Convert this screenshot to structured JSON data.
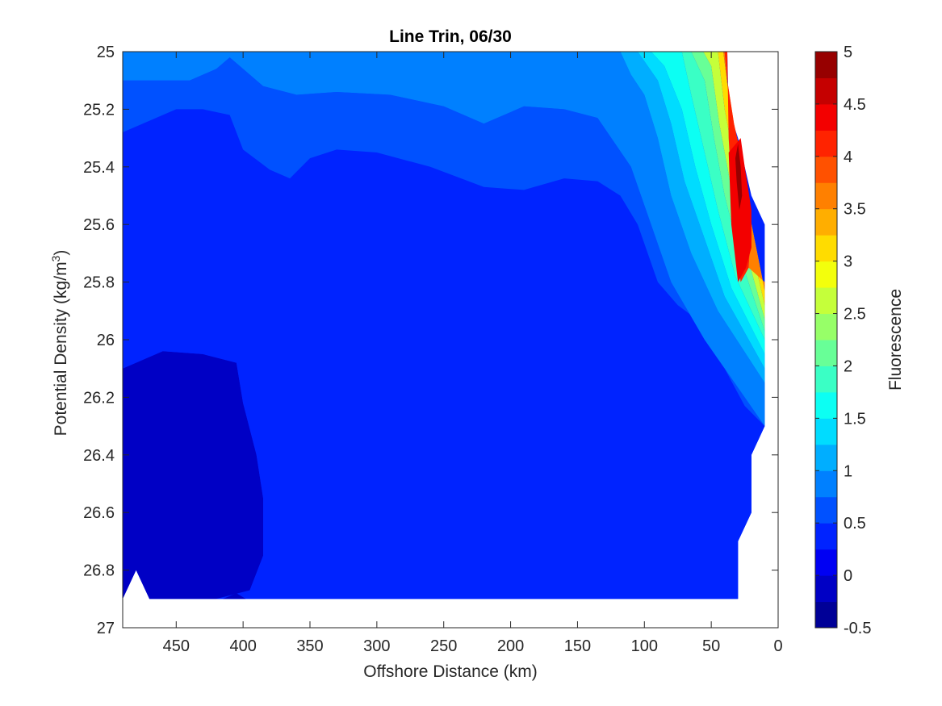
{
  "chart_data": {
    "type": "contourf",
    "title": "Line Trin, 06/30",
    "xlabel": "Offshore Distance (km)",
    "ylabel": "Potential Density (kg/m",
    "ylabel_superscript": "3",
    "ylabel_suffix": ")",
    "colorbar_label": "Fluorescence",
    "colormap": "jet",
    "x_reversed": true,
    "y_reversed": true,
    "xlim": [
      0,
      490
    ],
    "ylim": [
      25,
      27
    ],
    "xticks": [
      450,
      400,
      350,
      300,
      250,
      200,
      150,
      100,
      50,
      0
    ],
    "yticks": [
      25,
      25.2,
      25.4,
      25.6,
      25.8,
      26,
      26.2,
      26.4,
      26.6,
      26.8,
      27
    ],
    "color_levels": [
      -0.5,
      -0.25,
      0,
      0.25,
      0.5,
      0.75,
      1,
      1.25,
      1.5,
      1.75,
      2,
      2.25,
      2.5,
      2.75,
      3,
      3.25,
      3.5,
      3.75,
      4,
      4.25,
      4.5,
      4.75,
      5
    ],
    "colorbar_ticks": [
      -0.5,
      0,
      0.5,
      1,
      1.5,
      2,
      2.5,
      3,
      3.5,
      4,
      4.5,
      5
    ],
    "colorbar_ticklabels": [
      "-0.5",
      "0",
      "0.5",
      "1",
      "1.5",
      "2",
      "2.5",
      "3",
      "3.5",
      "4",
      "4.5",
      "5"
    ],
    "grid": false,
    "data_boundary": [
      [
        490,
        26.9
      ],
      [
        480,
        26.8
      ],
      [
        470,
        26.9
      ],
      [
        30,
        26.9
      ],
      [
        30,
        26.7
      ],
      [
        20,
        26.6
      ],
      [
        20,
        26.4
      ],
      [
        10,
        26.3
      ],
      [
        10,
        25.6
      ],
      [
        20,
        25.5
      ],
      [
        25,
        25.4
      ],
      [
        30,
        25.3
      ],
      [
        37,
        25.2
      ],
      [
        38,
        25.0
      ],
      [
        490,
        25.0
      ]
    ],
    "regions": [
      {
        "level": -0.25,
        "polygon": [
          [
            490,
            26.9
          ],
          [
            480,
            26.8
          ],
          [
            470,
            26.9
          ],
          [
            420,
            26.9
          ],
          [
            395,
            26.87
          ],
          [
            385,
            26.75
          ],
          [
            385,
            26.55
          ],
          [
            390,
            26.4
          ],
          [
            400,
            26.22
          ],
          [
            405,
            26.08
          ],
          [
            430,
            26.05
          ],
          [
            460,
            26.04
          ],
          [
            490,
            26.1
          ]
        ]
      },
      {
        "level": 0.25,
        "polygon": [
          [
            470,
            26.9
          ],
          [
            30,
            26.9
          ],
          [
            30,
            26.7
          ],
          [
            20,
            26.6
          ],
          [
            20,
            26.4
          ],
          [
            10,
            26.3
          ],
          [
            15,
            26.27
          ],
          [
            25,
            26.23
          ],
          [
            40,
            26.1
          ],
          [
            55,
            25.95
          ],
          [
            75,
            25.88
          ],
          [
            90,
            25.8
          ],
          [
            105,
            25.6
          ],
          [
            118,
            25.5
          ],
          [
            135,
            25.45
          ],
          [
            160,
            25.44
          ],
          [
            190,
            25.48
          ],
          [
            220,
            25.47
          ],
          [
            260,
            25.4
          ],
          [
            300,
            25.35
          ],
          [
            330,
            25.34
          ],
          [
            350,
            25.37
          ],
          [
            365,
            25.44
          ],
          [
            380,
            25.41
          ],
          [
            400,
            25.34
          ],
          [
            410,
            25.22
          ],
          [
            430,
            25.2
          ],
          [
            450,
            25.2
          ],
          [
            490,
            25.28
          ],
          [
            490,
            26.1
          ],
          [
            460,
            26.04
          ],
          [
            430,
            26.05
          ],
          [
            405,
            26.08
          ],
          [
            400,
            26.22
          ],
          [
            390,
            26.4
          ],
          [
            385,
            26.55
          ],
          [
            385,
            26.75
          ],
          [
            395,
            26.87
          ],
          [
            420,
            26.9
          ]
        ]
      },
      {
        "level": 0.5,
        "polygon": [
          [
            490,
            25.28
          ],
          [
            450,
            25.2
          ],
          [
            430,
            25.2
          ],
          [
            410,
            25.22
          ],
          [
            400,
            25.34
          ],
          [
            380,
            25.41
          ],
          [
            365,
            25.44
          ],
          [
            350,
            25.37
          ],
          [
            330,
            25.34
          ],
          [
            300,
            25.35
          ],
          [
            260,
            25.4
          ],
          [
            220,
            25.47
          ],
          [
            190,
            25.48
          ],
          [
            160,
            25.44
          ],
          [
            135,
            25.45
          ],
          [
            118,
            25.5
          ],
          [
            105,
            25.6
          ],
          [
            90,
            25.8
          ],
          [
            75,
            25.88
          ],
          [
            55,
            25.95
          ],
          [
            40,
            26.1
          ],
          [
            25,
            26.23
          ],
          [
            10,
            26.3
          ],
          [
            55,
            26.0
          ],
          [
            80,
            25.8
          ],
          [
            95,
            25.6
          ],
          [
            110,
            25.4
          ],
          [
            135,
            25.23
          ],
          [
            160,
            25.2
          ],
          [
            190,
            25.19
          ],
          [
            220,
            25.25
          ],
          [
            250,
            25.19
          ],
          [
            290,
            25.15
          ],
          [
            330,
            25.14
          ],
          [
            360,
            25.15
          ],
          [
            385,
            25.12
          ],
          [
            410,
            25.02
          ],
          [
            420,
            25.06
          ],
          [
            440,
            25.1
          ],
          [
            490,
            25.1
          ]
        ]
      },
      {
        "level": 0.75,
        "polygon": [
          [
            490,
            25.1
          ],
          [
            440,
            25.1
          ],
          [
            420,
            25.06
          ],
          [
            410,
            25.02
          ],
          [
            385,
            25.12
          ],
          [
            360,
            25.15
          ],
          [
            330,
            25.14
          ],
          [
            290,
            25.15
          ],
          [
            250,
            25.19
          ],
          [
            220,
            25.25
          ],
          [
            190,
            25.19
          ],
          [
            160,
            25.2
          ],
          [
            135,
            25.23
          ],
          [
            110,
            25.4
          ],
          [
            95,
            25.6
          ],
          [
            80,
            25.8
          ],
          [
            55,
            26.0
          ],
          [
            10,
            26.3
          ],
          [
            10,
            26.15
          ],
          [
            45,
            25.9
          ],
          [
            65,
            25.7
          ],
          [
            80,
            25.5
          ],
          [
            90,
            25.3
          ],
          [
            100,
            25.15
          ],
          [
            110,
            25.08
          ],
          [
            118,
            25.0
          ],
          [
            490,
            25.0
          ]
        ]
      },
      {
        "level": 1.0,
        "polygon": [
          [
            118,
            25.0
          ],
          [
            110,
            25.08
          ],
          [
            100,
            25.15
          ],
          [
            90,
            25.3
          ],
          [
            80,
            25.5
          ],
          [
            65,
            25.7
          ],
          [
            45,
            25.9
          ],
          [
            10,
            26.15
          ],
          [
            10,
            26.1
          ],
          [
            40,
            25.85
          ],
          [
            55,
            25.65
          ],
          [
            70,
            25.45
          ],
          [
            80,
            25.25
          ],
          [
            90,
            25.1
          ],
          [
            105,
            25.0
          ]
        ]
      },
      {
        "level": 1.25,
        "polygon": [
          [
            105,
            25.0
          ],
          [
            90,
            25.1
          ],
          [
            80,
            25.25
          ],
          [
            70,
            25.45
          ],
          [
            55,
            25.65
          ],
          [
            40,
            25.85
          ],
          [
            10,
            26.1
          ],
          [
            10,
            26.05
          ],
          [
            35,
            25.82
          ],
          [
            50,
            25.6
          ],
          [
            62,
            25.4
          ],
          [
            72,
            25.2
          ],
          [
            85,
            25.05
          ],
          [
            95,
            25.0
          ]
        ]
      },
      {
        "level": 1.5,
        "polygon": [
          [
            95,
            25.0
          ],
          [
            85,
            25.05
          ],
          [
            72,
            25.2
          ],
          [
            62,
            25.4
          ],
          [
            50,
            25.6
          ],
          [
            35,
            25.82
          ],
          [
            10,
            26.05
          ],
          [
            10,
            26.0
          ],
          [
            32,
            25.78
          ],
          [
            45,
            25.55
          ],
          [
            55,
            25.35
          ],
          [
            65,
            25.15
          ],
          [
            72,
            25.0
          ]
        ]
      },
      {
        "level": 1.75,
        "polygon": [
          [
            72,
            25.0
          ],
          [
            65,
            25.15
          ],
          [
            55,
            25.35
          ],
          [
            45,
            25.55
          ],
          [
            32,
            25.78
          ],
          [
            10,
            26.0
          ],
          [
            10,
            25.97
          ],
          [
            28,
            25.72
          ],
          [
            40,
            25.5
          ],
          [
            48,
            25.3
          ],
          [
            55,
            25.1
          ],
          [
            65,
            25.0
          ]
        ]
      },
      {
        "level": 2.0,
        "polygon": [
          [
            65,
            25.0
          ],
          [
            55,
            25.1
          ],
          [
            48,
            25.3
          ],
          [
            40,
            25.5
          ],
          [
            28,
            25.72
          ],
          [
            10,
            25.97
          ],
          [
            10,
            25.93
          ],
          [
            26,
            25.66
          ],
          [
            36,
            25.45
          ],
          [
            44,
            25.25
          ],
          [
            50,
            25.05
          ],
          [
            56,
            25.0
          ]
        ]
      },
      {
        "level": 2.5,
        "polygon": [
          [
            56,
            25.0
          ],
          [
            50,
            25.05
          ],
          [
            44,
            25.25
          ],
          [
            36,
            25.45
          ],
          [
            26,
            25.66
          ],
          [
            10,
            25.93
          ],
          [
            10,
            25.88
          ],
          [
            24,
            25.6
          ],
          [
            32,
            25.4
          ],
          [
            40,
            25.2
          ],
          [
            45,
            25.0
          ]
        ]
      },
      {
        "level": 3.0,
        "polygon": [
          [
            45,
            25.0
          ],
          [
            40,
            25.2
          ],
          [
            32,
            25.4
          ],
          [
            24,
            25.6
          ],
          [
            10,
            25.88
          ],
          [
            10,
            25.83
          ],
          [
            22,
            25.55
          ],
          [
            30,
            25.35
          ],
          [
            37,
            25.15
          ],
          [
            41,
            25.0
          ]
        ]
      },
      {
        "level": 3.5,
        "polygon": [
          [
            41,
            25.0
          ],
          [
            37,
            25.15
          ],
          [
            30,
            25.35
          ],
          [
            22,
            25.55
          ],
          [
            10,
            25.83
          ],
          [
            10,
            25.8
          ],
          [
            22,
            25.75
          ],
          [
            20,
            25.6
          ],
          [
            26,
            25.4
          ],
          [
            33,
            25.25
          ],
          [
            38,
            25.1
          ],
          [
            40,
            25.0
          ]
        ]
      },
      {
        "level": 4.0,
        "polygon": [
          [
            40,
            25.0
          ],
          [
            38,
            25.1
          ],
          [
            33,
            25.25
          ],
          [
            26,
            25.4
          ],
          [
            20,
            25.6
          ],
          [
            22,
            25.75
          ],
          [
            28,
            25.8
          ],
          [
            33,
            25.62
          ],
          [
            37,
            25.3
          ],
          [
            38,
            25.0
          ]
        ]
      },
      {
        "level": 4.25,
        "polygon": [
          [
            30,
            25.8
          ],
          [
            35,
            25.6
          ],
          [
            37,
            25.35
          ],
          [
            28,
            25.3
          ],
          [
            25,
            25.4
          ],
          [
            20,
            25.55
          ],
          [
            20,
            25.68
          ],
          [
            24,
            25.75
          ]
        ]
      },
      {
        "level": 4.75,
        "polygon": [
          [
            29,
            25.55
          ],
          [
            31,
            25.45
          ],
          [
            32,
            25.37
          ],
          [
            30,
            25.32
          ],
          [
            28,
            25.4
          ],
          [
            27,
            25.5
          ]
        ]
      },
      {
        "level": -0.25,
        "polygon": [
          [
            415,
            26.9
          ],
          [
            405,
            26.88
          ],
          [
            398,
            26.9
          ]
        ]
      }
    ]
  }
}
